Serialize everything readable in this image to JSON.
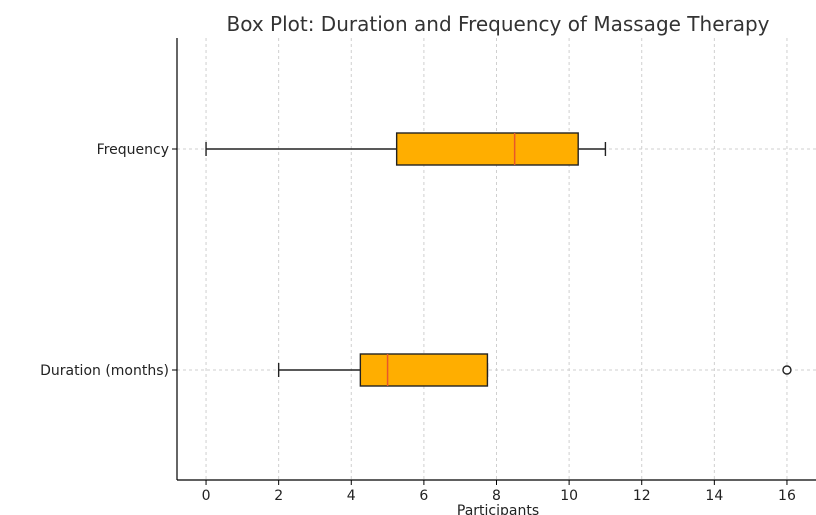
{
  "chart_data": {
    "type": "boxplot",
    "orientation": "horizontal",
    "title": "Box Plot: Duration and Frequency of Massage Therapy",
    "xlabel": "Participants",
    "xlim": [
      -0.8,
      16.8
    ],
    "xticks": [
      0,
      2,
      4,
      6,
      8,
      10,
      12,
      14,
      16
    ],
    "grid": true,
    "colors": {
      "box_fill": "#FFAE00",
      "median": "#E8572A",
      "edge": "#222222",
      "grid": "#cfcfcf"
    },
    "categories": [
      "Frequency",
      "Duration (months)"
    ],
    "boxes": [
      {
        "label": "Frequency",
        "whisker_low": 0,
        "q1": 5.25,
        "median": 8.5,
        "q3": 10.25,
        "whisker_high": 11,
        "outliers": []
      },
      {
        "label": "Duration (months)",
        "whisker_low": 2,
        "q1": 4.25,
        "median": 5,
        "q3": 7.75,
        "whisker_high": 7.75,
        "outliers": [
          16
        ]
      }
    ]
  }
}
